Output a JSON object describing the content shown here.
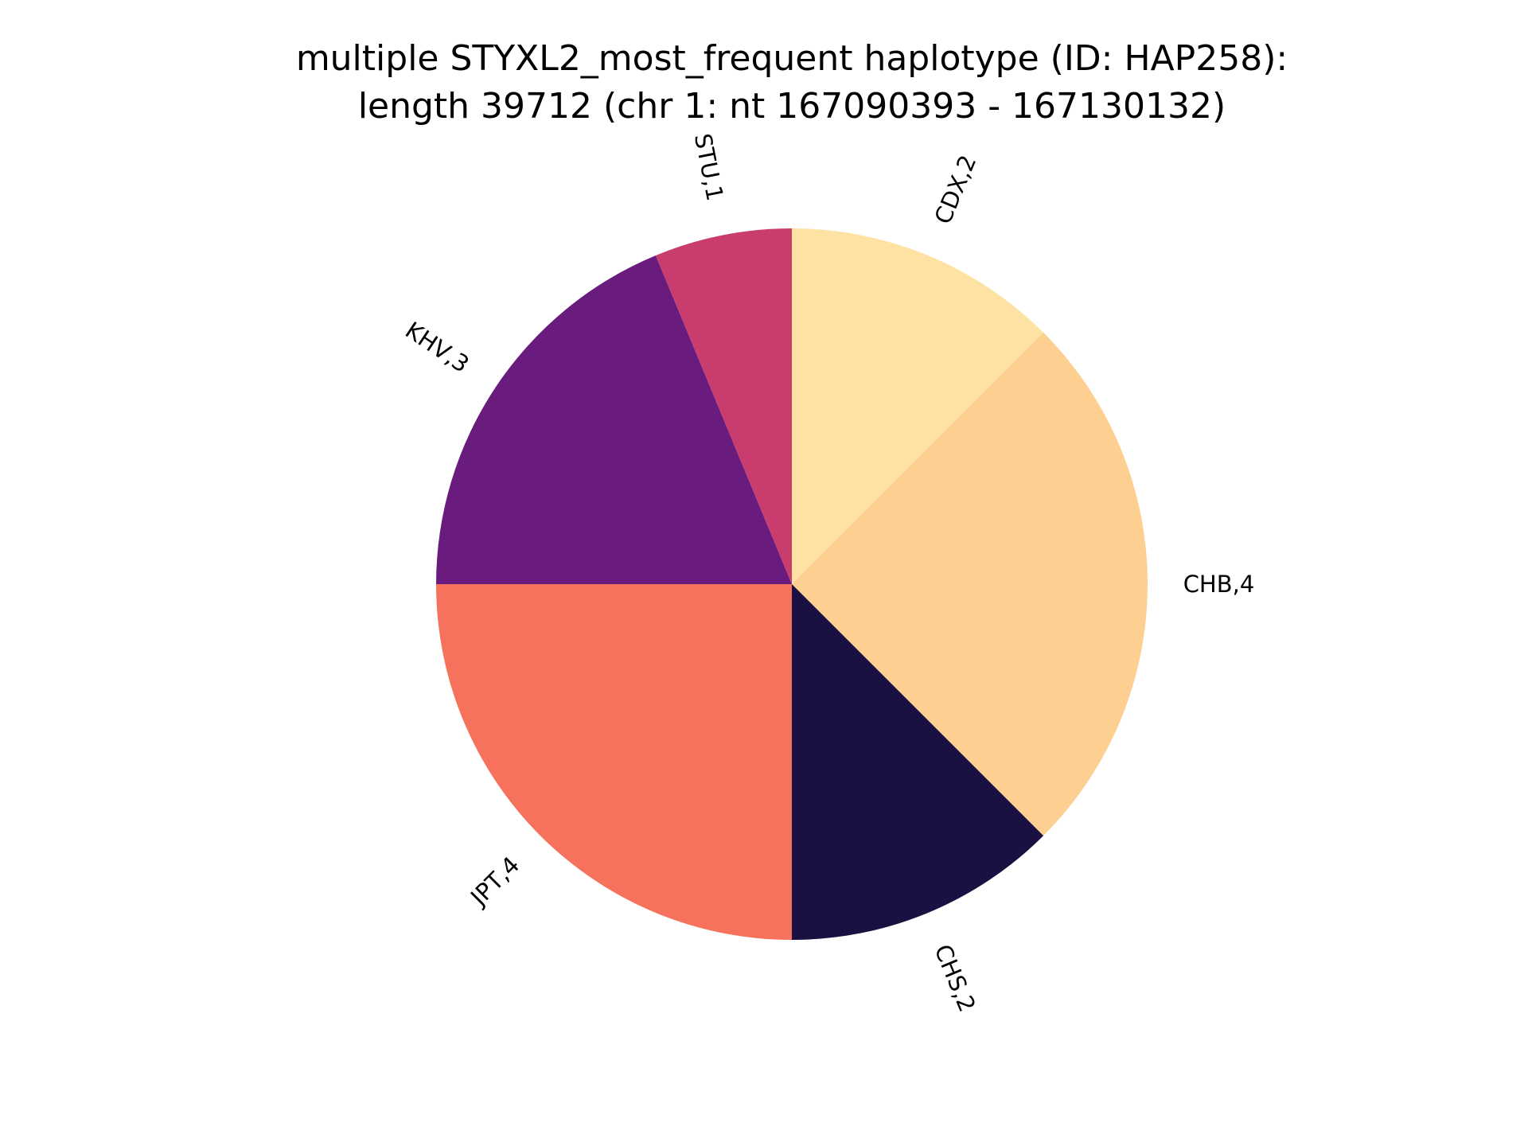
{
  "chart_data": {
    "type": "pie",
    "title_lines": [
      "multiple STYXL2_most_frequent haplotype (ID: HAP258):",
      "length 39712 (chr 1: nt 167090393 - 167130132)"
    ],
    "start_angle": 90,
    "direction": "clockwise",
    "slices": [
      {
        "label": "CDX,2",
        "value": 2,
        "color": "#fde2a3"
      },
      {
        "label": "CHB,4",
        "value": 4,
        "color": "#fdd092"
      },
      {
        "label": "CHS,2",
        "value": 2,
        "color": "#1b1042"
      },
      {
        "label": "JPT,4",
        "value": 4,
        "color": "#f6725c"
      },
      {
        "label": "KHV,3",
        "value": 3,
        "color": "#6a1b7e"
      },
      {
        "label": "STU,1",
        "value": 1,
        "color": "#c83c6e"
      }
    ]
  }
}
